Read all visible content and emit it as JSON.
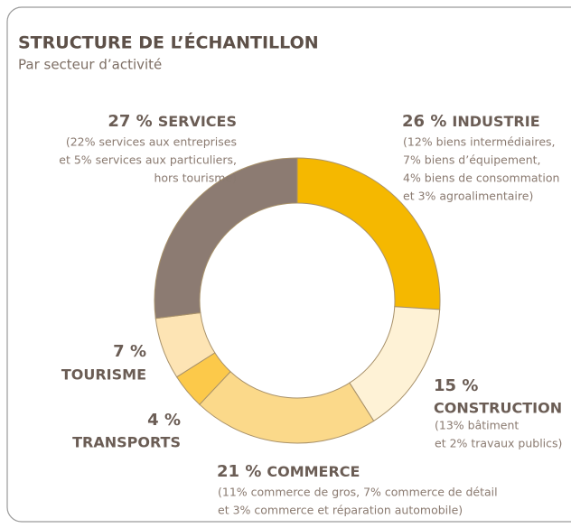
{
  "chart_data": {
    "type": "donut",
    "title": "STRUCTURE DE L’ÉCHANTILLON",
    "subtitle": "Par secteur d’activité",
    "categories": [
      "INDUSTRIE",
      "CONSTRUCTION",
      "COMMERCE",
      "TRANSPORTS",
      "TOURISME",
      "SERVICES"
    ],
    "values": [
      26,
      15,
      21,
      4,
      7,
      27
    ],
    "value_labels": [
      "26 %",
      "15 %",
      "21 %",
      "4 %",
      "7 %",
      "27 %"
    ],
    "colors": [
      "#f5b800",
      "#fef2d6",
      "#fbd98a",
      "#fcc94a",
      "#fde4b4",
      "#8c7b72"
    ],
    "details": [
      [
        "(12% biens intermédiaires,",
        "7% biens d’équipement,",
        "4% biens de consommation",
        "et 3% agroalimentaire)"
      ],
      [
        "(13% bâtiment",
        "et 2% travaux publics)"
      ],
      [
        "(11% commerce de gros, 7% commerce de détail",
        "et 3% commerce et réparation automobile)"
      ],
      [],
      [],
      [
        "(22% services aux entreprises",
        "et 5% services aux particuliers,",
        "hors tourisme)"
      ]
    ]
  }
}
